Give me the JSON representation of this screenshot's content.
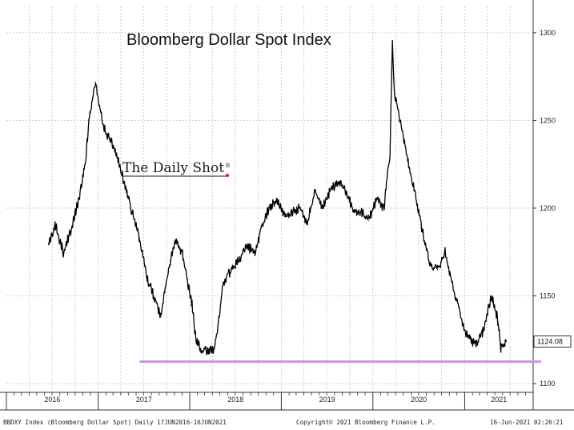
{
  "chart_data": {
    "type": "line",
    "title": "Bloomberg Dollar Spot Index",
    "xlabel": "",
    "ylabel": "",
    "ylim": [
      1095,
      1315
    ],
    "y_ticks": [
      1100,
      1150,
      1200,
      1250,
      1300
    ],
    "x_tick_labels": [
      "2016",
      "2017",
      "2018",
      "2019",
      "2020",
      "2021"
    ],
    "series": [
      {
        "x": [
          "2016-06-17",
          "2016-07-15",
          "2016-08-15",
          "2016-09-15",
          "2016-10-15",
          "2016-11-10",
          "2016-11-25",
          "2016-12-20",
          "2017-01-10",
          "2017-01-25",
          "2017-02-15",
          "2017-03-10",
          "2017-03-25",
          "2017-04-20",
          "2017-05-15",
          "2017-06-15",
          "2017-07-15",
          "2017-08-10",
          "2017-09-08",
          "2017-09-25",
          "2017-10-15",
          "2017-11-05",
          "2017-12-01",
          "2017-12-15",
          "2018-01-10",
          "2018-01-25",
          "2018-02-15",
          "2018-03-15",
          "2018-04-10",
          "2018-04-25",
          "2018-05-15",
          "2018-06-15",
          "2018-07-15",
          "2018-08-15",
          "2018-09-20",
          "2018-10-15",
          "2018-11-15",
          "2018-12-15",
          "2019-01-15",
          "2019-02-15",
          "2019-03-15",
          "2019-04-15",
          "2019-05-15",
          "2019-06-15",
          "2019-07-15",
          "2019-08-15",
          "2019-09-15",
          "2019-10-15",
          "2019-11-15",
          "2019-12-15",
          "2020-01-15",
          "2020-02-15",
          "2020-02-28",
          "2020-03-09",
          "2020-03-19",
          "2020-03-27",
          "2020-04-15",
          "2020-05-15",
          "2020-06-15",
          "2020-07-15",
          "2020-08-15",
          "2020-09-15",
          "2020-10-15",
          "2020-11-15",
          "2020-12-15",
          "2021-01-06",
          "2021-02-15",
          "2021-03-15",
          "2021-03-31",
          "2021-04-20",
          "2021-05-15",
          "2021-05-25",
          "2021-06-16"
        ],
        "values": [
          1180,
          1190,
          1175,
          1187,
          1205,
          1225,
          1250,
          1272,
          1255,
          1245,
          1240,
          1232,
          1225,
          1212,
          1198,
          1183,
          1160,
          1150,
          1138,
          1155,
          1170,
          1182,
          1175,
          1165,
          1145,
          1125,
          1120,
          1118,
          1120,
          1135,
          1158,
          1165,
          1170,
          1178,
          1175,
          1190,
          1200,
          1205,
          1195,
          1198,
          1200,
          1192,
          1210,
          1200,
          1210,
          1215,
          1210,
          1198,
          1198,
          1193,
          1205,
          1200,
          1220,
          1230,
          1295,
          1265,
          1252,
          1230,
          1210,
          1188,
          1168,
          1165,
          1175,
          1155,
          1140,
          1128,
          1122,
          1130,
          1140,
          1150,
          1135,
          1120,
          1124
        ]
      }
    ],
    "last_value_label": "1124.08",
    "reference_line": {
      "y": 1112.5,
      "color": "#c893e6"
    },
    "line_color": "#000000",
    "grid": true
  },
  "brand": {
    "text": "The Daily Shot",
    "superscript": "®",
    "dot_color": "#c0392b"
  },
  "footer": {
    "left": "BBDXY Index (Bloomberg Dollar Spot)  Daily 17JUN2016-16JUN2021",
    "center": "Copyright© 2021 Bloomberg Finance L.P.",
    "right": "16-Jun-2021 02:26:21"
  }
}
